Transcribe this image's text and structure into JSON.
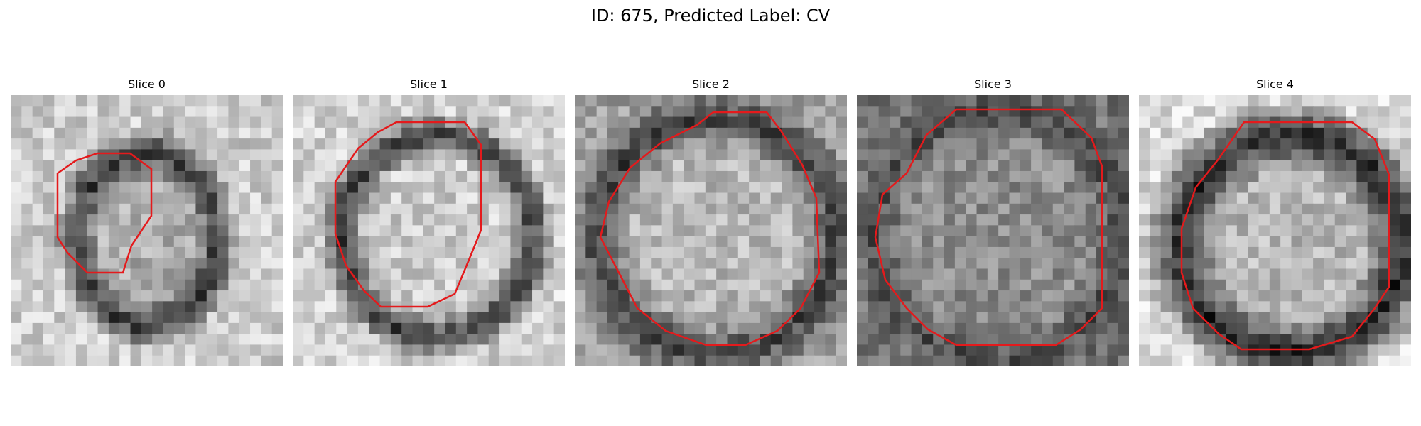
{
  "figure": {
    "title": "ID: 675, Predicted Label: CV",
    "colormap": "grayscale",
    "contour_color": "#e41a1c"
  },
  "slices": [
    {
      "label": "Slice 0",
      "grid_size": 25
    },
    {
      "label": "Slice 1",
      "grid_size": 25
    },
    {
      "label": "Slice 2",
      "grid_size": 25
    },
    {
      "label": "Slice 3",
      "grid_size": 25
    },
    {
      "label": "Slice 4",
      "grid_size": 25
    }
  ]
}
